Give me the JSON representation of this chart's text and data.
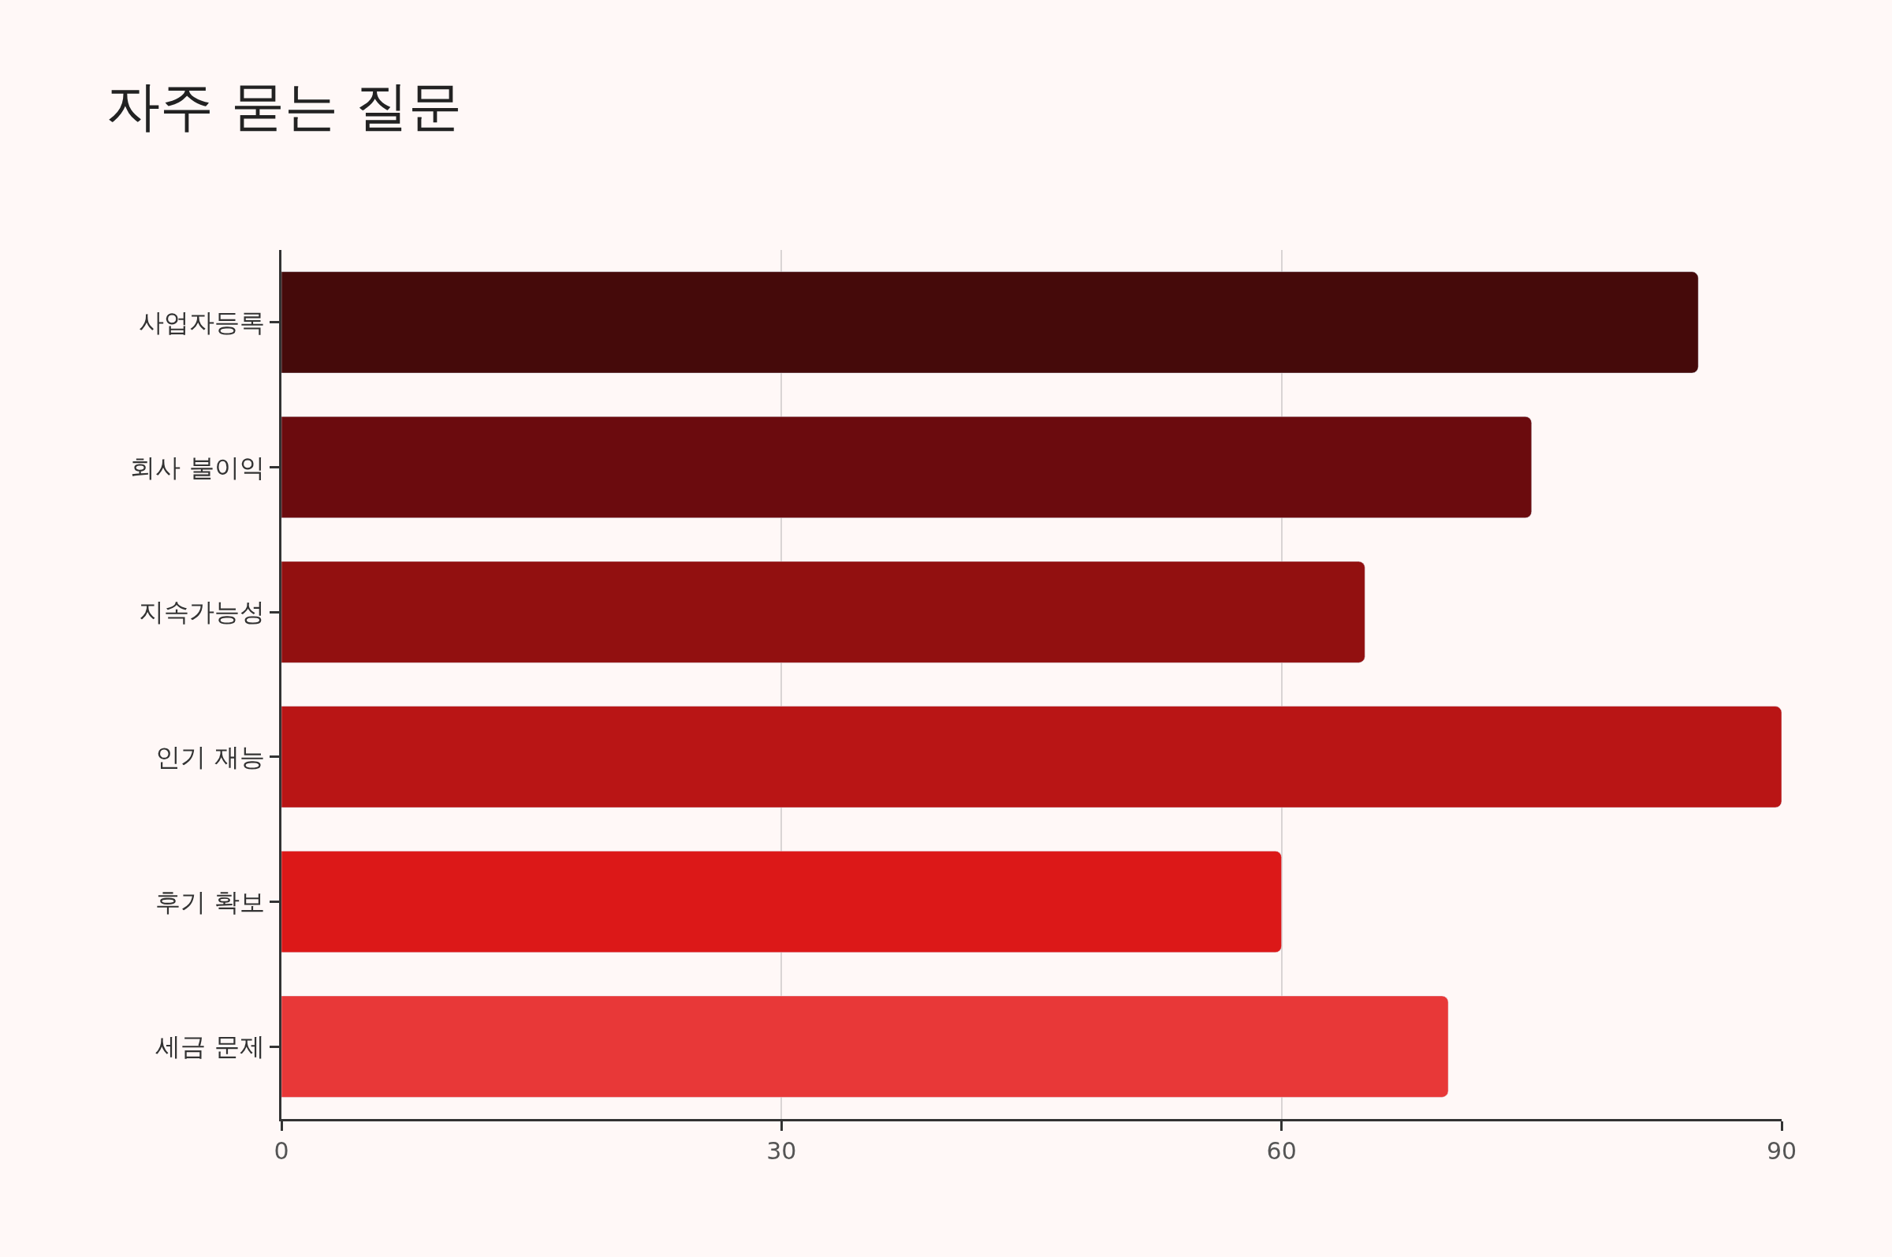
{
  "chart_data": {
    "type": "bar",
    "title": "자주 묻는 질문",
    "orientation": "horizontal",
    "categories": [
      "사업자등록",
      "회사 불이익",
      "지속가능성",
      "인기 재능",
      "후기 확보",
      "세금 문제"
    ],
    "values": [
      85,
      75,
      65,
      90,
      60,
      70
    ],
    "colors": [
      "#450a0a",
      "#6b0b0e",
      "#921010",
      "#b91515",
      "#dc1818",
      "#e83838"
    ],
    "xlim": [
      0,
      90
    ],
    "xticks": [
      0,
      30,
      60,
      90
    ],
    "grid": "x"
  }
}
